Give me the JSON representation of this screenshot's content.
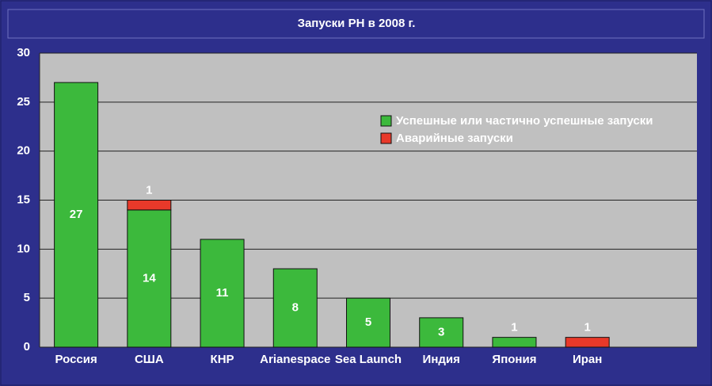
{
  "chart_data": {
    "type": "stacked_bar",
    "title": "Запуски РН в 2008 г.",
    "categories": [
      "Россия",
      "США",
      "КНР",
      "Arianespace",
      "Sea Launch",
      "Индия",
      "Япония",
      "Иран",
      null
    ],
    "series": [
      {
        "name": "Успешные или частично успешные запуски",
        "color": "#3cb93c",
        "values": [
          27,
          14,
          11,
          8,
          5,
          3,
          1,
          null,
          null
        ]
      },
      {
        "name": "Аварийные запуски",
        "color": "#e8392a",
        "values": [
          null,
          1,
          null,
          null,
          null,
          null,
          null,
          1,
          null
        ]
      }
    ],
    "ylim": [
      0,
      30
    ],
    "yticks": [
      0,
      5,
      10,
      15,
      20,
      25,
      30
    ],
    "grid": true,
    "legend": "upper right"
  }
}
